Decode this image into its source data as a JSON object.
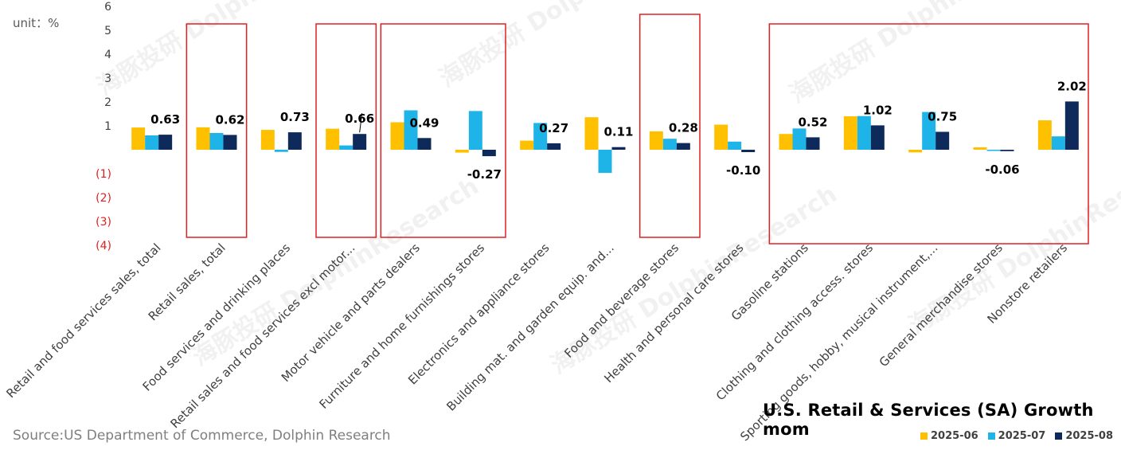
{
  "unit_label": "unit：%",
  "title": "U.S. Retail & Services (SA) Growth mom",
  "source": "Source:US Department of Commerce, Dolphin Research",
  "watermark": "海豚投研 DolphinResearch",
  "colors": {
    "series_2025_06": "#FFC000",
    "series_2025_07": "#1FB4E8",
    "series_2025_08": "#0E2A5A",
    "highlight_box": "#E02020",
    "negative_tick": "#E02020"
  },
  "chart_data": {
    "type": "bar",
    "ylim": [
      -4,
      6
    ],
    "yticks": [
      {
        "value": 6,
        "label": "6"
      },
      {
        "value": 5,
        "label": "5"
      },
      {
        "value": 4,
        "label": "4"
      },
      {
        "value": 3,
        "label": "3"
      },
      {
        "value": 2,
        "label": "2"
      },
      {
        "value": 1,
        "label": "1"
      },
      {
        "value": -1,
        "label": "(1)"
      },
      {
        "value": -2,
        "label": "(2)"
      },
      {
        "value": -3,
        "label": "(3)"
      },
      {
        "value": -4,
        "label": "(4)"
      }
    ],
    "grid": false,
    "legend_position": "bottom-right",
    "categories": [
      "Retail and food services sales, total",
      "Retail sales, total",
      "Food services and drinking places",
      "Retail sales and food services excl motor...",
      "Motor vehicle and parts dealers",
      "Furniture and home furnishings stores",
      "Electronics and appliance stores",
      "Building mat. and garden equip. and...",
      "Food and beverage stores",
      "Health and personal care stores",
      "Gasoline stations",
      "Clothing and clothing access. stores",
      "Sporting goods, hobby, musical instrument,...",
      "General merchandise stores",
      "Nonstore retailers"
    ],
    "series": [
      {
        "name": "2025-06",
        "values": [
          0.93,
          0.94,
          0.83,
          0.88,
          1.15,
          -0.12,
          0.38,
          1.36,
          0.77,
          1.05,
          0.66,
          1.4,
          -0.11,
          0.1,
          1.23
        ]
      },
      {
        "name": "2025-07",
        "values": [
          0.6,
          0.7,
          -0.09,
          0.18,
          1.65,
          1.62,
          1.12,
          -0.97,
          0.46,
          0.34,
          0.89,
          1.41,
          1.58,
          -0.03,
          0.56
        ]
      },
      {
        "name": "2025-08",
        "values": [
          0.63,
          0.62,
          0.73,
          0.66,
          0.49,
          -0.27,
          0.27,
          0.11,
          0.28,
          -0.1,
          0.52,
          1.02,
          0.75,
          -0.06,
          2.02
        ]
      }
    ],
    "data_labels": [
      {
        "category": 0,
        "text": "0.63"
      },
      {
        "category": 1,
        "text": "0.62"
      },
      {
        "category": 2,
        "text": "0.73"
      },
      {
        "category": 3,
        "text": "0.66"
      },
      {
        "category": 4,
        "text": "0.49"
      },
      {
        "category": 5,
        "text": "-0.27"
      },
      {
        "category": 6,
        "text": "0.27"
      },
      {
        "category": 7,
        "text": "0.11"
      },
      {
        "category": 8,
        "text": "0.28"
      },
      {
        "category": 9,
        "text": "-0.10"
      },
      {
        "category": 10,
        "text": "0.52"
      },
      {
        "category": 11,
        "text": "1.02"
      },
      {
        "category": 12,
        "text": "0.75"
      },
      {
        "category": 13,
        "text": "-0.06"
      },
      {
        "category": 14,
        "text": "2.02"
      }
    ],
    "highlights": [
      {
        "from_category": 1,
        "to_category": 1
      },
      {
        "from_category": 3,
        "to_category": 3
      },
      {
        "from_category": 4,
        "to_category": 5
      },
      {
        "from_category": 8,
        "to_category": 8
      },
      {
        "from_category": 10,
        "to_category": 14
      }
    ]
  }
}
